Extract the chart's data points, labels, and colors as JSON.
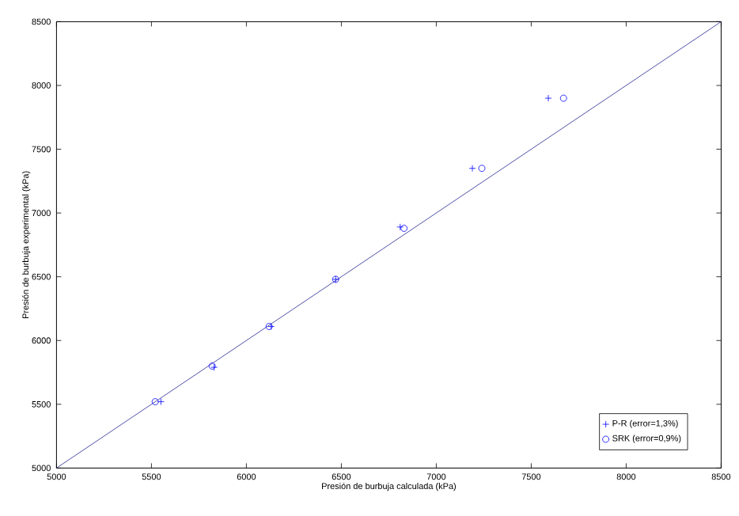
{
  "chart_data": {
    "type": "scatter",
    "xlabel": "Presión de burbuja calculada (kPa)",
    "ylabel": "Presión de burbuja experimental (kPa)",
    "xlim": [
      5000,
      8500
    ],
    "ylim": [
      5000,
      8500
    ],
    "xticks": [
      5000,
      5500,
      6000,
      6500,
      7000,
      7500,
      8000,
      8500
    ],
    "yticks": [
      5000,
      5500,
      6000,
      6500,
      7000,
      7500,
      8000,
      8500
    ],
    "grid": false,
    "legend": "bottom right",
    "series": [
      {
        "name": "P-R (error=1,3%)",
        "color": "#0000ff",
        "marker": "cross",
        "x": [
          5550,
          5830,
          6130,
          6470,
          6810,
          7190,
          7590
        ],
        "values": [
          5520,
          5790,
          6110,
          6480,
          6890,
          7350,
          7900
        ]
      },
      {
        "name": "SRK (error=0,9%)",
        "color": "#0000ff",
        "marker": "circle",
        "x": [
          5520,
          5820,
          6120,
          6470,
          6830,
          7240,
          7670
        ],
        "values": [
          5520,
          5800,
          6110,
          6480,
          6880,
          7350,
          7900
        ]
      },
      {
        "type": "line",
        "color": "#5050a8",
        "x": [
          5000,
          8500
        ],
        "values": [
          5000,
          8500
        ]
      }
    ]
  }
}
